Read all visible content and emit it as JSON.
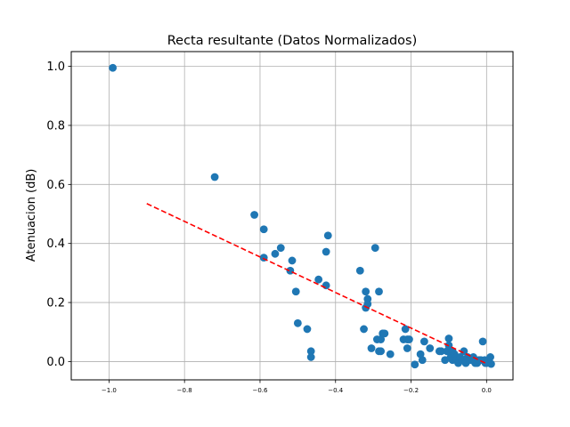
{
  "chart_data": {
    "type": "scatter",
    "title": "Recta resultante (Datos Normalizados)",
    "xlabel": "",
    "ylabel": "Atenuacion (dB)",
    "xlim": [
      -1.1,
      0.07
    ],
    "ylim": [
      -0.062,
      1.05
    ],
    "xticks": [
      -1.0,
      -0.8,
      -0.6,
      -0.4,
      -0.2,
      0.0
    ],
    "xtick_labels": [
      "−1.0",
      "−0.8",
      "−0.6",
      "−0.4",
      "−0.2",
      "0.0"
    ],
    "yticks": [
      0.0,
      0.2,
      0.4,
      0.6,
      0.8,
      1.0
    ],
    "ytick_labels": [
      "0.0",
      "0.2",
      "0.4",
      "0.6",
      "0.8",
      "1.0"
    ],
    "grid": true,
    "colors": {
      "points": "#1f77b4",
      "fit_line": "#ff0000",
      "grid": "#b0b0b0",
      "axes": "#000000"
    },
    "series": [
      {
        "kind": "points",
        "x": [
          -0.99,
          -0.72,
          -0.615,
          -0.59,
          -0.59,
          -0.56,
          -0.545,
          -0.52,
          -0.515,
          -0.505,
          -0.5,
          -0.475,
          -0.465,
          -0.465,
          -0.445,
          -0.425,
          -0.425,
          -0.42,
          -0.335,
          -0.325,
          -0.32,
          -0.32,
          -0.315,
          -0.315,
          -0.305,
          -0.295,
          -0.29,
          -0.285,
          -0.285,
          -0.28,
          -0.28,
          -0.275,
          -0.275,
          -0.27,
          -0.255,
          -0.22,
          -0.215,
          -0.21,
          -0.21,
          -0.205,
          -0.19,
          -0.175,
          -0.17,
          -0.165,
          -0.15,
          -0.125,
          -0.12,
          -0.11,
          -0.105,
          -0.1,
          -0.1,
          -0.095,
          -0.09,
          -0.09,
          -0.085,
          -0.08,
          -0.08,
          -0.075,
          -0.07,
          -0.065,
          -0.06,
          -0.055,
          -0.05,
          -0.045,
          -0.04,
          -0.035,
          -0.03,
          -0.025,
          -0.02,
          -0.015,
          -0.01,
          -0.005,
          -0.003,
          0.0,
          0.01,
          0.012
        ],
        "y": [
          0.995,
          0.625,
          0.497,
          0.448,
          0.352,
          0.365,
          0.385,
          0.308,
          0.342,
          0.237,
          0.13,
          0.11,
          0.035,
          0.015,
          0.278,
          0.258,
          0.372,
          0.427,
          0.308,
          0.11,
          0.182,
          0.237,
          0.212,
          0.195,
          0.045,
          0.385,
          0.075,
          0.237,
          0.035,
          0.075,
          0.035,
          0.095,
          0.095,
          0.095,
          0.025,
          0.075,
          0.11,
          0.045,
          0.075,
          0.075,
          -0.01,
          0.025,
          0.005,
          0.068,
          0.045,
          0.035,
          0.035,
          0.005,
          0.035,
          0.078,
          0.055,
          0.015,
          0.035,
          0.005,
          0.025,
          0.015,
          0.005,
          -0.005,
          0.015,
          0.005,
          0.035,
          -0.005,
          0.015,
          0.005,
          0.005,
          0.015,
          -0.005,
          -0.005,
          0.005,
          0.005,
          0.068,
          0.005,
          -0.005,
          -0.005,
          0.015,
          -0.008
        ]
      },
      {
        "kind": "fit_line",
        "x": [
          -0.9,
          0.0
        ],
        "y": [
          0.535,
          -0.007
        ]
      }
    ]
  }
}
